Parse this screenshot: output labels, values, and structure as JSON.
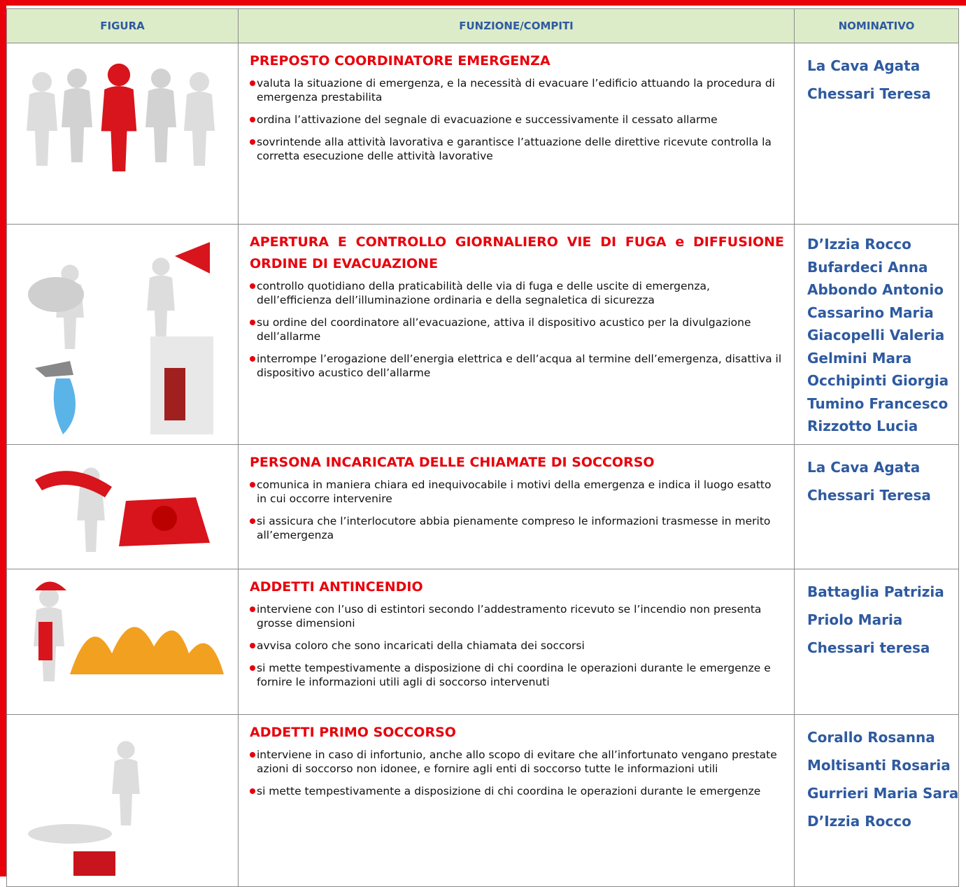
{
  "table": {
    "header": [
      "FIGURA",
      "FUNZIONE/COMPITI",
      "NOMINATIVO"
    ],
    "rows": [
      {
        "title": "PREPOSTO COORDINATORE EMERGENZA",
        "items": [
          "valuta la situazione di emergenza, e la necessità di evacuare l’edificio attuando la procedura di emergenza prestabilita",
          "ordina l’attivazione del segnale di evacuazione e successivamente il cessato allarme",
          "sovrintende alla attività lavorativa e garantisce l’attuazione delle direttive ricevute controlla la corretta esecuzione delle attività lavorative"
        ],
        "names": [
          "La Cava Agata",
          "Chessari Teresa"
        ]
      },
      {
        "title": "APERTURA E CONTROLLO GIORNALIERO VIE DI FUGA e DIFFUSIONE ORDINE DI EVACUAZIONE",
        "items": [
          "controllo quotidiano della praticabilità delle via di fuga e delle uscite di emergenza, dell’efficienza dell’illuminazione ordinaria e della segnaletica di sicurezza",
          "su ordine del coordinatore all’evacuazione, attiva il dispositivo acustico per la divulgazione dell’allarme",
          "interrompe l’erogazione dell’energia elettrica e dell’acqua al termine dell’emergenza, disattiva il dispositivo acustico dell’allarme"
        ],
        "names": [
          "D’Izzia Rocco",
          "Bufardeci Anna",
          "Abbondo Antonio",
          "Cassarino Maria",
          "Giacopelli Valeria",
          "Gelmini Mara",
          "Occhipinti Giorgia",
          "Tumino Francesco",
          "Rizzotto Lucia"
        ]
      },
      {
        "title": "PERSONA INCARICATA DELLE CHIAMATE DI SOCCORSO",
        "items": [
          "comunica in maniera chiara ed inequivocabile  i motivi della emergenza e indica il luogo esatto in cui occorre intervenire",
          "si assicura che l’interlocutore abbia pienamente compreso le informazioni trasmesse in merito all’emergenza"
        ],
        "names": [
          "La Cava Agata",
          "Chessari Teresa"
        ]
      },
      {
        "title": "ADDETTI ANTINCENDIO",
        "items": [
          "interviene con l’uso di estintori secondo l’addestramento ricevuto se l’incendio non presenta grosse dimensioni",
          "avvisa coloro che sono incaricati della chiamata dei soccorsi",
          "si mette tempestivamente a disposizione di chi coordina le operazioni durante le emergenze e fornire le informazioni utili agli di soccorso intervenuti"
        ],
        "names": [
          "Battaglia Patrizia",
          "Priolo Maria",
          "Chessari teresa"
        ]
      },
      {
        "title": "ADDETTI PRIMO SOCCORSO",
        "items": [
          "interviene in caso di infortunio, anche allo scopo di evitare che all’infortunato vengano prestate azioni di soccorso non idonee, e fornire agli enti di soccorso tutte le informazioni utili",
          "si mette tempestivamente a disposizione di chi coordina le operazioni durante le emergenze"
        ],
        "names": [
          "Corallo Rosanna",
          "Moltisanti Rosaria",
          "Gurrieri Maria Sara",
          "D’Izzia Rocco"
        ]
      }
    ]
  }
}
